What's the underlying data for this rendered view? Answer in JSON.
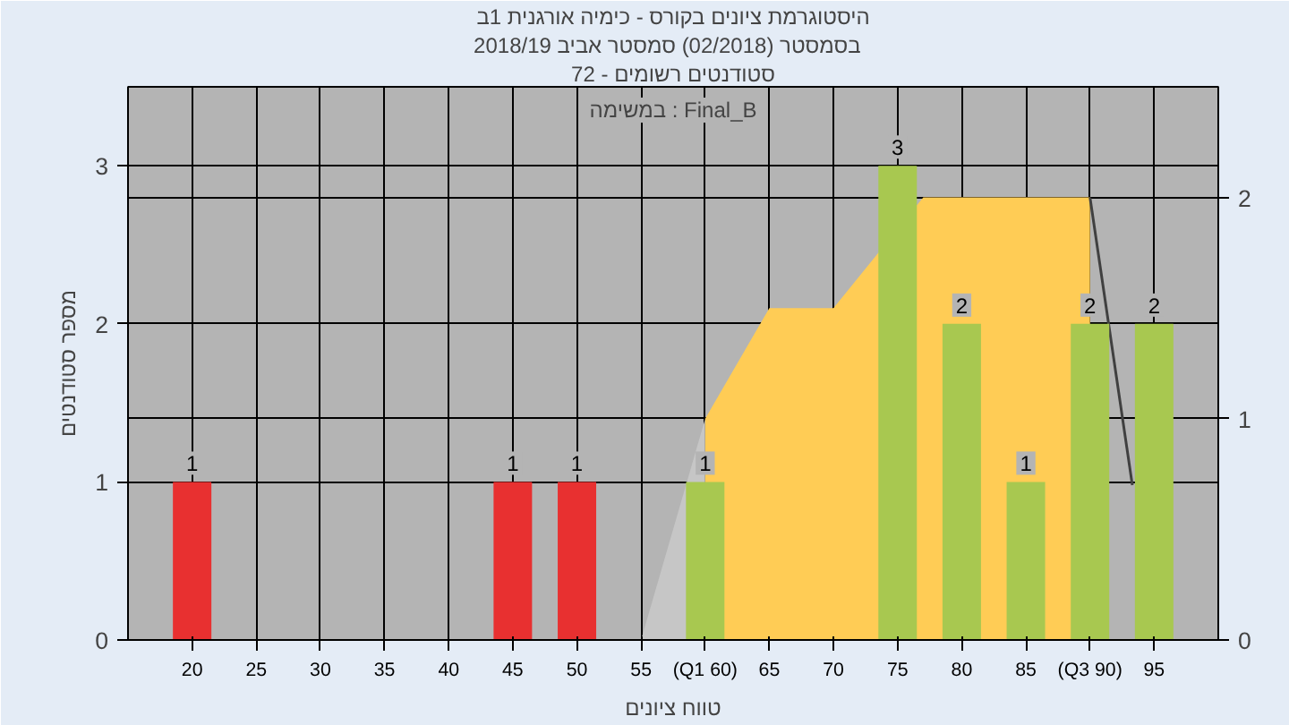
{
  "chart_data": {
    "type": "bar",
    "title": "היסטוגרמת ציונים בקורס - כימיה אורגנית 1ב",
    "subtitle": "בסמסטר  (02/2018)  סמסטר אביב 2018/19",
    "xlabel": "טווח ציונים",
    "ylabel": "מספר סטודנטים",
    "annotations": [
      "סטודנטים רשומים - 72",
      "במשימה : Final_B"
    ],
    "x": [
      20,
      25,
      30,
      35,
      40,
      45,
      50,
      55,
      60,
      65,
      70,
      75,
      80,
      85,
      90,
      95
    ],
    "series": [
      {
        "type": "area",
        "axis": "y2",
        "x": [
          55,
          60
        ],
        "values": [
          0,
          1
        ],
        "color": "#c6c6c6"
      },
      {
        "type": "area",
        "axis": "y2",
        "x": [
          60,
          65,
          70,
          77,
          80,
          85,
          90
        ],
        "values": [
          1,
          1.5,
          1.5,
          2,
          2,
          2,
          2
        ],
        "color": "#ffcc55"
      },
      {
        "type": "line",
        "axis": "y2",
        "x": [
          90,
          93.3
        ],
        "values": [
          2,
          0.7
        ],
        "color": "#404040"
      },
      {
        "values": [
          1,
          0,
          0,
          0,
          0,
          1,
          1,
          0,
          1,
          0,
          0,
          3,
          2,
          1,
          2,
          2
        ],
        "colors": [
          "#e83030",
          "#e83030",
          "#e83030",
          "#e83030",
          "#e83030",
          "#e83030",
          "#e83030",
          "#e83030",
          "#a8c850",
          "#a8c850",
          "#a8c850",
          "#a8c850",
          "#a8c850",
          "#a8c850",
          "#a8c850",
          "#a8c850"
        ],
        "value_labels": [
          "1",
          null,
          null,
          null,
          null,
          "1",
          "1",
          null,
          "1",
          null,
          null,
          "3",
          "2",
          "1",
          "2",
          "2"
        ]
      }
    ],
    "xlim": [
      15,
      100
    ],
    "xticks": [
      20,
      25,
      30,
      35,
      40,
      45,
      50,
      55,
      {
        "value": 60,
        "label": "(Q1 60)"
      },
      65,
      70,
      75,
      80,
      85,
      {
        "value": 90,
        "label": "(Q3 90)"
      },
      95
    ],
    "ylim": [
      0,
      3.5
    ],
    "yticks": [
      0,
      1,
      2,
      3
    ],
    "y2lim": [
      0,
      2.5
    ],
    "y2ticks": [
      0,
      1,
      2
    ],
    "grid": true
  }
}
